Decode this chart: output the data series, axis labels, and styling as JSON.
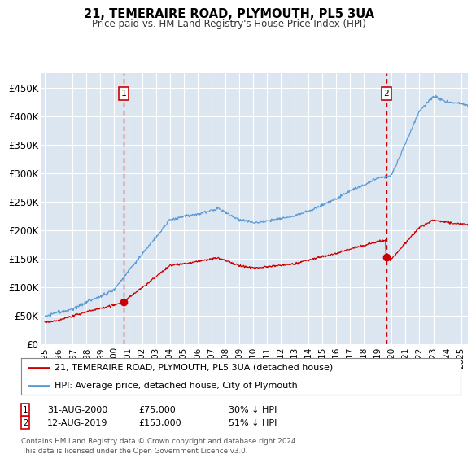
{
  "title": "21, TEMERAIRE ROAD, PLYMOUTH, PL5 3UA",
  "subtitle": "Price paid vs. HM Land Registry's House Price Index (HPI)",
  "ylim": [
    0,
    475000
  ],
  "yticks": [
    0,
    50000,
    100000,
    150000,
    200000,
    250000,
    300000,
    350000,
    400000,
    450000
  ],
  "ytick_labels": [
    "£0",
    "£50K",
    "£100K",
    "£150K",
    "£200K",
    "£250K",
    "£300K",
    "£350K",
    "£400K",
    "£450K"
  ],
  "plot_bg_color": "#dce6f1",
  "sale1_date": 2000.66,
  "sale1_price": 75000,
  "sale1_date_str": "31-AUG-2000",
  "sale1_price_str": "£75,000",
  "sale1_pct": "30% ↓ HPI",
  "sale2_date": 2019.61,
  "sale2_price": 153000,
  "sale2_date_str": "12-AUG-2019",
  "sale2_price_str": "£153,000",
  "sale2_pct": "51% ↓ HPI",
  "legend_line1": "21, TEMERAIRE ROAD, PLYMOUTH, PL5 3UA (detached house)",
  "legend_line2": "HPI: Average price, detached house, City of Plymouth",
  "footer": "Contains HM Land Registry data © Crown copyright and database right 2024.\nThis data is licensed under the Open Government Licence v3.0.",
  "line_red_color": "#cc0000",
  "line_blue_color": "#5b9bd5",
  "grid_color": "#ffffff",
  "sale_line_color": "#cc0000",
  "xlim_left": 1994.7,
  "xlim_right": 2025.5
}
